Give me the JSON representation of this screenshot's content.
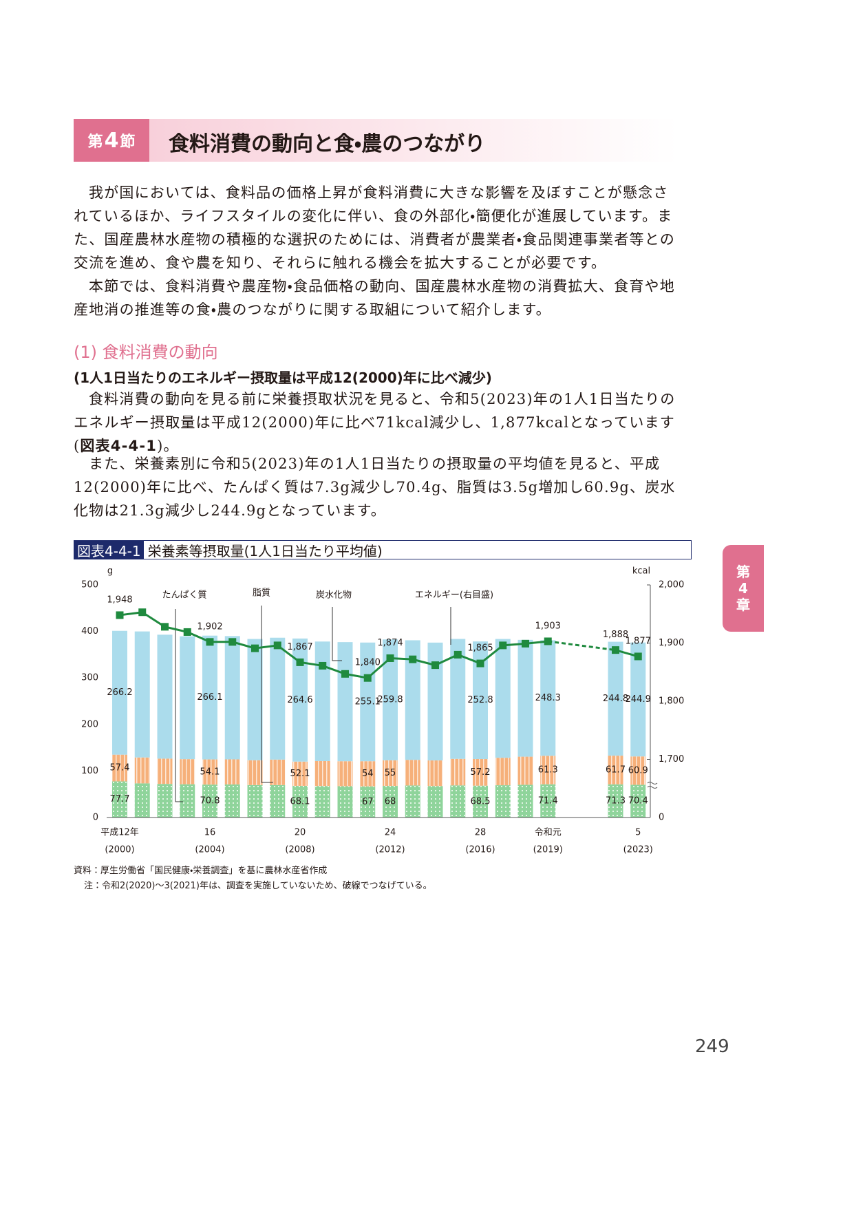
{
  "header": {
    "prefix": "第",
    "number": "4",
    "suffix": "節",
    "title": "食料消費の動向と食・農のつながり"
  },
  "intro": [
    "我が国においては、食料品の価格上昇が食料消費に大きな影響を及ぼすことが懸念されているほか、ライフスタイルの変化に伴い、食の外部化・簡便化が進展しています。また、国産農林水産物の積極的な選択のためには、消費者が農業者・食品関連事業者等との交流を進め、食や農を知り、それらに触れる機会を拡大することが必要です。",
    "本節では、食料消費や農産物・食品価格の動向、国産農林水産物の消費拡大、食育や地産地消の推進等の食・農のつながりに関する取組について紹介します。"
  ],
  "section": {
    "title": "(1) 食料消費の動向",
    "subtitle": "(1人1日当たりのエネルギー摂取量は平成12(2000)年に比べ減少)"
  },
  "body": {
    "p1": {
      "text": "食料消費の動向を見る前に栄養摂取状況を見ると、令和5(2023)年の1人1日当たりのエネルギー摂取量は平成12(2000)年に比べ71kcal減少し、1,877kcalとなっています(",
      "ref": "図表4-4-1",
      "tail": ")。"
    },
    "p2": "また、栄養素別に令和5(2023)年の1人1日当たりの摂取量の平均値を見ると、平成12(2000)年に比べ、たんぱく質は7.3g減少し70.4g、脂質は3.5g増加し60.9g、炭水化物は21.3g減少し244.9gとなっています。"
  },
  "figure": {
    "label": "図表4-4-1",
    "title": "栄養素等摂取量(1人1日当たり平均値)"
  },
  "chart_data": {
    "type": "stacked-bar-line",
    "y_label": "g",
    "y2_label": "kcal",
    "categories": [
      [
        "平成12年",
        "(2000)"
      ],
      null,
      null,
      null,
      [
        "16",
        "(2004)"
      ],
      null,
      null,
      null,
      [
        "20",
        "(2008)"
      ],
      null,
      null,
      null,
      [
        "24",
        "(2012)"
      ],
      null,
      null,
      null,
      [
        "28",
        "(2016)"
      ],
      null,
      null,
      [
        "令和元",
        "(2019)"
      ],
      null,
      null,
      null,
      [
        "5",
        "(2023)"
      ]
    ],
    "ylim": [
      0,
      500
    ],
    "yticks": [
      0,
      100,
      200,
      300,
      400,
      500
    ],
    "y2lim": [
      0,
      2000
    ],
    "y2_break": [
      0,
      1600
    ],
    "y2ticks": [
      0,
      {
        "value": 1700,
        "label": "1,700"
      },
      {
        "value": 1800,
        "label": "1,800"
      },
      {
        "value": 1900,
        "label": "1,900"
      },
      {
        "value": 2000,
        "label": "2,000"
      }
    ],
    "labeled_indices": [
      0,
      4,
      8,
      11,
      12,
      16,
      19,
      22,
      23
    ],
    "series": [
      {
        "name": "たんぱく質",
        "color": "#8fd49b",
        "pattern": "dots",
        "values": [
          77.7,
          73.4,
          72.2,
          71.5,
          70.8,
          71.1,
          69.8,
          69.8,
          68.1,
          67.8,
          67.3,
          67.0,
          68.0,
          68.9,
          67.7,
          69.1,
          68.5,
          69.4,
          70.4,
          71.4,
          null,
          null,
          71.3,
          70.4
        ]
      },
      {
        "name": "脂質",
        "color": "#f6b07a",
        "pattern": "stripes",
        "values": [
          57.4,
          55.7,
          54.4,
          54.0,
          54.1,
          53.9,
          53.3,
          54.7,
          52.1,
          53.5,
          53.7,
          54.0,
          55.0,
          55.0,
          55.0,
          57.0,
          57.2,
          59.0,
          60.4,
          61.3,
          null,
          null,
          61.7,
          60.9
        ]
      },
      {
        "name": "炭水化物",
        "color": "#abdcec",
        "pattern": null,
        "values": [
          266.2,
          270.9,
          266.4,
          264.0,
          266.1,
          265.0,
          260.7,
          262.0,
          264.6,
          257.0,
          256.0,
          255.1,
          259.8,
          257.1,
          253.3,
          257.8,
          252.8,
          255.4,
          251.1,
          248.3,
          null,
          null,
          244.8,
          244.9
        ]
      },
      {
        "name": "エネルギー(右目盛)",
        "color": "#1f8a3e",
        "axis": "y2",
        "kind": "line",
        "dashed_gaps": true,
        "values": [
          1948,
          1953,
          1928,
          1919,
          1902,
          1902,
          1891,
          1896,
          1867,
          1861,
          1847,
          1840,
          1874,
          1872,
          1862,
          1880,
          1865,
          1896,
          1899,
          1903,
          null,
          null,
          1888,
          1877
        ],
        "value_labels": [
          "1,948",
          null,
          null,
          null,
          "1,902",
          null,
          null,
          null,
          "1,867",
          null,
          null,
          "1,840",
          "1,874",
          null,
          null,
          null,
          "1,865",
          null,
          null,
          "1,903",
          null,
          null,
          "1,888",
          "1,877"
        ]
      }
    ]
  },
  "source": "資料：厚生労働省「国民健康・栄養調査」を基に農林水産省作成",
  "note": "注：令和2(2020)～3(2021)年は、調査を実施していないため、破線でつなげている。",
  "side_tab": [
    "第",
    "4",
    "章"
  ],
  "page_number": "249"
}
